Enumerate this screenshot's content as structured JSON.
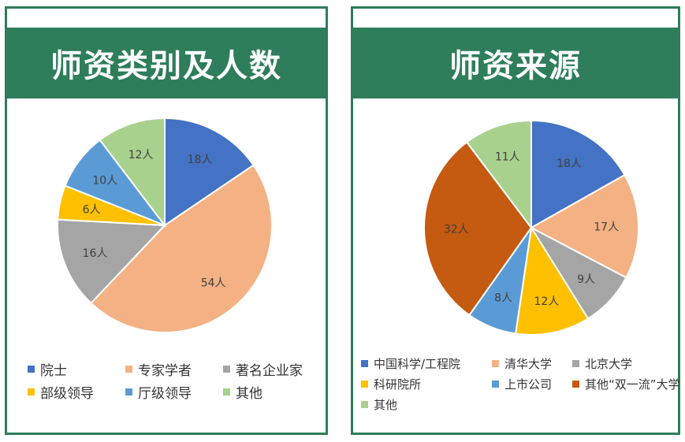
{
  "chart_data": [
    {
      "type": "pie",
      "title": "师资类别及人数",
      "unit": "人",
      "slices": [
        {
          "label": "院士",
          "value": 18,
          "color": "#4472c4"
        },
        {
          "label": "专家学者",
          "value": 54,
          "color": "#f4b183"
        },
        {
          "label": "著名企业家",
          "value": 16,
          "color": "#a5a5a5"
        },
        {
          "label": "部级领导",
          "value": 6,
          "color": "#ffc000"
        },
        {
          "label": "厅级领导",
          "value": 10,
          "color": "#5b9bd5"
        },
        {
          "label": "其他",
          "value": 12,
          "color": "#a9d18e"
        }
      ],
      "legend": "bottom"
    },
    {
      "type": "pie",
      "title": "师资来源",
      "unit": "人",
      "slices": [
        {
          "label": "中国科学/工程院",
          "value": 18,
          "color": "#4472c4"
        },
        {
          "label": "清华大学",
          "value": 17,
          "color": "#f4b183"
        },
        {
          "label": "北京大学",
          "value": 9,
          "color": "#a5a5a5"
        },
        {
          "label": "科研院所",
          "value": 12,
          "color": "#ffc000"
        },
        {
          "label": "上市公司",
          "value": 8,
          "color": "#5b9bd5"
        },
        {
          "label": "其他“双一流”大学",
          "value": 32,
          "color": "#c55a11"
        },
        {
          "label": "其他",
          "value": 11,
          "color": "#a9d18e"
        }
      ],
      "legend": "bottom"
    }
  ]
}
